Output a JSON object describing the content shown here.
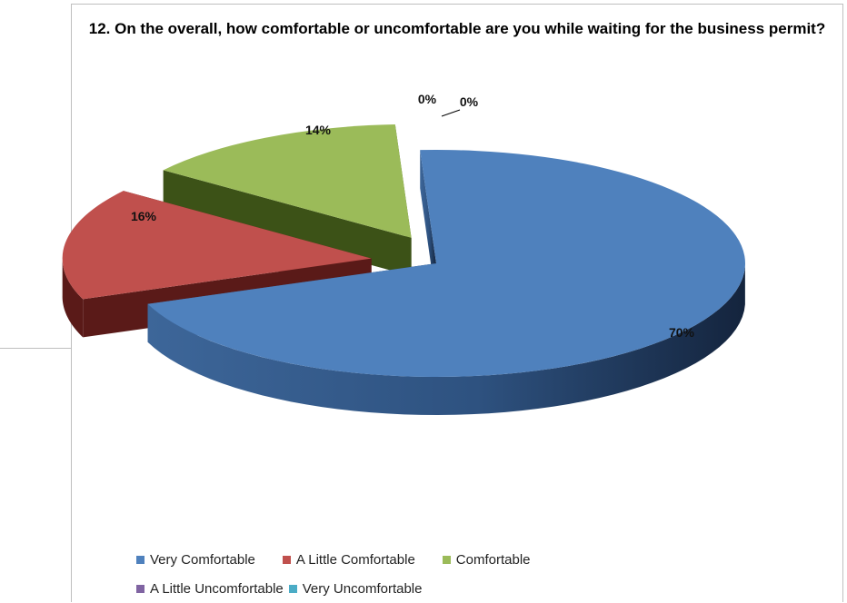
{
  "chart_data": {
    "type": "pie",
    "title": "12. On the overall, how comfortable or uncomfortable are you while waiting for the business permit?",
    "categories": [
      "Very Comfortable",
      "A Little Comfortable",
      "Comfortable",
      "A Little Uncomfortable",
      "Very Uncomfortable"
    ],
    "values": [
      70,
      16,
      14,
      0,
      0
    ],
    "data_labels": [
      "70%",
      "16%",
      "14%",
      "0%",
      "0%"
    ],
    "colors": [
      "#4f81bd",
      "#c0504d",
      "#9bbb59",
      "#8064a2",
      "#4bacc6"
    ],
    "style": "3d-exploded",
    "legend_position": "bottom"
  }
}
